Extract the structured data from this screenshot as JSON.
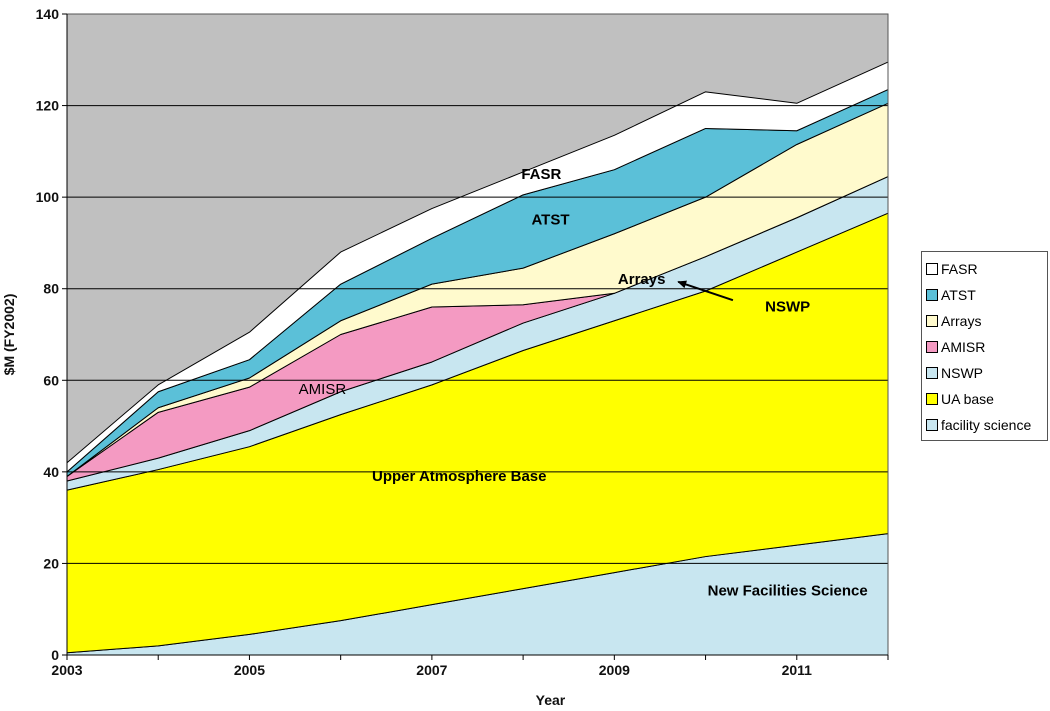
{
  "chart_data": {
    "type": "area",
    "stacked": true,
    "title": "",
    "xlabel": "Year",
    "ylabel": "$M (FY2002)",
    "xlim": [
      2003,
      2012
    ],
    "ylim": [
      0,
      140
    ],
    "x_ticks": [
      2003,
      2005,
      2007,
      2009,
      2011
    ],
    "y_ticks": [
      0,
      20,
      40,
      60,
      80,
      100,
      120,
      140
    ],
    "grid": "horizontal",
    "plot_background": "#c0c0c0",
    "legend_position": "right",
    "x": [
      2003,
      2004,
      2005,
      2006,
      2007,
      2008,
      2009,
      2010,
      2011,
      2012
    ],
    "series": [
      {
        "name": "facility science",
        "color": "#c8e6f0",
        "values": [
          0.5,
          2,
          4.5,
          7.5,
          11,
          14.5,
          18,
          21.5,
          24,
          26.5
        ]
      },
      {
        "name": "UA base",
        "color": "#ffff00",
        "values": [
          35.5,
          38.5,
          41,
          45,
          48,
          52,
          55,
          58,
          64,
          70
        ]
      },
      {
        "name": "NSWP",
        "color": "#c8e6f0",
        "values": [
          2,
          2.5,
          3.5,
          5,
          5,
          6,
          6,
          7.5,
          7.5,
          8
        ]
      },
      {
        "name": "AMISR",
        "color": "#f49ac2",
        "values": [
          1,
          10,
          9.5,
          12.5,
          12,
          4,
          0,
          0,
          0,
          0
        ]
      },
      {
        "name": "Arrays",
        "color": "#fffacd",
        "values": [
          0,
          1,
          2,
          3,
          5,
          8,
          13,
          13,
          16,
          16
        ]
      },
      {
        "name": "ATST",
        "color": "#5bc0d8",
        "values": [
          1,
          3.5,
          4,
          8,
          10,
          16,
          14,
          15,
          3,
          3
        ]
      },
      {
        "name": "FASR",
        "color": "#ffffff",
        "values": [
          2,
          1.5,
          6,
          7,
          6.5,
          5,
          7.5,
          8,
          6,
          6
        ]
      }
    ],
    "annotations": [
      {
        "text": "FASR",
        "x": 2008.2,
        "y": 104
      },
      {
        "text": "ATST",
        "x": 2008.3,
        "y": 94
      },
      {
        "text": "Arrays",
        "x": 2009.3,
        "y": 81
      },
      {
        "text": "NSWP",
        "x": 2010.9,
        "y": 75
      },
      {
        "text": "AMISR",
        "x": 2005.8,
        "y": 57
      },
      {
        "text": "Upper Atmosphere Base",
        "x": 2007.3,
        "y": 38
      },
      {
        "text": "New Facilities Science",
        "x": 2010.9,
        "y": 13
      }
    ],
    "arrow": {
      "from": [
        2010.3,
        77.5
      ],
      "to": [
        2009.7,
        81.5
      ]
    },
    "legend_entries": [
      "FASR",
      "ATST",
      "Arrays",
      "AMISR",
      "NSWP",
      "UA base",
      "facility science"
    ]
  }
}
